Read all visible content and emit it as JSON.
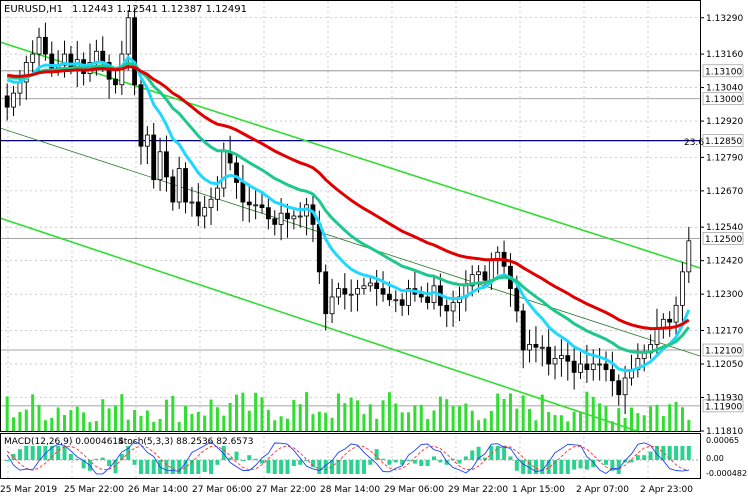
{
  "chart_header": {
    "symbol": "EURUSD,H1",
    "ohlc": "1.12443 1.12541 1.12387 1.12491"
  },
  "oscillator_header": {
    "macd": "MACD(12,26,9) 0.0004614",
    "stoch": "Stoch(5,3,3) 88.2536 82.6573"
  },
  "main_price_axis": [
    "1.13290",
    "1.13160",
    "1.13040",
    "1.12920",
    "1.12790",
    "1.12670",
    "1.12540",
    "1.12420",
    "1.12300",
    "1.12170",
    "1.12050",
    "1.11930",
    "1.11810"
  ],
  "level_labels": [
    "1.13100",
    "1.13000",
    "1.12850",
    "1.12500",
    "1.12100",
    "1.11900"
  ],
  "fib_label": "23.6",
  "osc_axis": [
    "0.00065",
    "0.00",
    "-0.000482"
  ],
  "time_labels": [
    "25 Mar 2019",
    "25 Mar 22:00",
    "26 Mar 14:00",
    "27 Mar 06:00",
    "27 Mar 22:00",
    "28 Mar 14:00",
    "29 Mar 06:00",
    "29 Mar 22:00",
    "1 Apr 15:00",
    "2 Apr 07:00",
    "2 Apr 23:00"
  ],
  "colors": {
    "background": "#ffffff",
    "grid": "#aaaaaa",
    "candle": "#000000",
    "ema_red": "#e00000",
    "ema_green": "#1ec88c",
    "ema_cyan": "#20d8ff",
    "channel": "#30dd30",
    "volume": "#30dd30",
    "macd_hist": "#2bd18f",
    "stoch_main": "#2040ff",
    "stoch_signal": "#ff3030",
    "level_line": "#000080"
  },
  "chart_data": {
    "type": "candlestick",
    "title": "EURUSD,H1",
    "ylim": [
      1.1181,
      1.1335
    ],
    "levels": [
      1.131,
      1.13,
      1.1285,
      1.125,
      1.121,
      1.119
    ],
    "ohlc_last": [
      1.12443,
      1.12541,
      1.12387,
      1.12491
    ],
    "close_path": [
      [
        0,
        1.1297
      ],
      [
        1,
        1.1302
      ],
      [
        2,
        1.1306
      ],
      [
        3,
        1.1313
      ],
      [
        4,
        1.1316
      ],
      [
        5,
        1.1322
      ],
      [
        6,
        1.1316
      ],
      [
        7,
        1.1311
      ],
      [
        8,
        1.1312
      ],
      [
        9,
        1.1316
      ],
      [
        10,
        1.1311
      ],
      [
        11,
        1.1314
      ],
      [
        12,
        1.1309
      ],
      [
        13,
        1.1313
      ],
      [
        14,
        1.1317
      ],
      [
        15,
        1.1313
      ],
      [
        16,
        1.1307
      ],
      [
        17,
        1.1305
      ],
      [
        18,
        1.1316
      ],
      [
        19,
        1.1329
      ],
      [
        20,
        1.1305
      ],
      [
        21,
        1.1283
      ],
      [
        22,
        1.1287
      ],
      [
        23,
        1.1271
      ],
      [
        24,
        1.1281
      ],
      [
        25,
        1.1272
      ],
      [
        26,
        1.1263
      ],
      [
        27,
        1.1275
      ],
      [
        28,
        1.1263
      ],
      [
        29,
        1.1263
      ],
      [
        30,
        1.1258
      ],
      [
        31,
        1.1261
      ],
      [
        32,
        1.1264
      ],
      [
        33,
        1.1268
      ],
      [
        34,
        1.1281
      ],
      [
        35,
        1.1277
      ],
      [
        36,
        1.127
      ],
      [
        37,
        1.1263
      ],
      [
        38,
        1.1262
      ],
      [
        39,
        1.1262
      ],
      [
        40,
        1.1261
      ],
      [
        41,
        1.1257
      ],
      [
        42,
        1.1255
      ],
      [
        43,
        1.1259
      ],
      [
        44,
        1.1257
      ],
      [
        45,
        1.1258
      ],
      [
        46,
        1.1258
      ],
      [
        47,
        1.1262
      ],
      [
        48,
        1.1255
      ],
      [
        49,
        1.1238
      ],
      [
        50,
        1.1223
      ],
      [
        51,
        1.1229
      ],
      [
        52,
        1.1232
      ],
      [
        53,
        1.123
      ],
      [
        54,
        1.123
      ],
      [
        55,
        1.1232
      ],
      [
        56,
        1.1233
      ],
      [
        57,
        1.1234
      ],
      [
        58,
        1.1232
      ],
      [
        59,
        1.123
      ],
      [
        60,
        1.1228
      ],
      [
        61,
        1.1228
      ],
      [
        62,
        1.1226
      ],
      [
        63,
        1.1232
      ],
      [
        64,
        1.123
      ],
      [
        65,
        1.1229
      ],
      [
        66,
        1.1227
      ],
      [
        67,
        1.1233
      ],
      [
        68,
        1.1226
      ],
      [
        69,
        1.1224
      ],
      [
        70,
        1.1227
      ],
      [
        71,
        1.1229
      ],
      [
        72,
        1.1233
      ],
      [
        73,
        1.1237
      ],
      [
        74,
        1.1238
      ],
      [
        75,
        1.1235
      ],
      [
        76,
        1.1242
      ],
      [
        77,
        1.1245
      ],
      [
        78,
        1.124
      ],
      [
        79,
        1.1232
      ],
      [
        80,
        1.1224
      ],
      [
        81,
        1.121
      ],
      [
        82,
        1.1212
      ],
      [
        83,
        1.1211
      ],
      [
        84,
        1.1211
      ],
      [
        85,
        1.1205
      ],
      [
        86,
        1.1207
      ],
      [
        87,
        1.1208
      ],
      [
        88,
        1.1206
      ],
      [
        89,
        1.1202
      ],
      [
        90,
        1.1205
      ],
      [
        91,
        1.1203
      ],
      [
        92,
        1.1205
      ],
      [
        93,
        1.1205
      ],
      [
        94,
        1.1203
      ],
      [
        95,
        1.1199
      ],
      [
        96,
        1.1194
      ],
      [
        97,
        1.12
      ],
      [
        98,
        1.1203
      ],
      [
        99,
        1.1207
      ],
      [
        100,
        1.1209
      ],
      [
        101,
        1.1212
      ],
      [
        102,
        1.1218
      ],
      [
        103,
        1.1221
      ],
      [
        104,
        1.122
      ],
      [
        105,
        1.1226
      ],
      [
        106,
        1.1238
      ],
      [
        107,
        1.12491
      ]
    ]
  }
}
